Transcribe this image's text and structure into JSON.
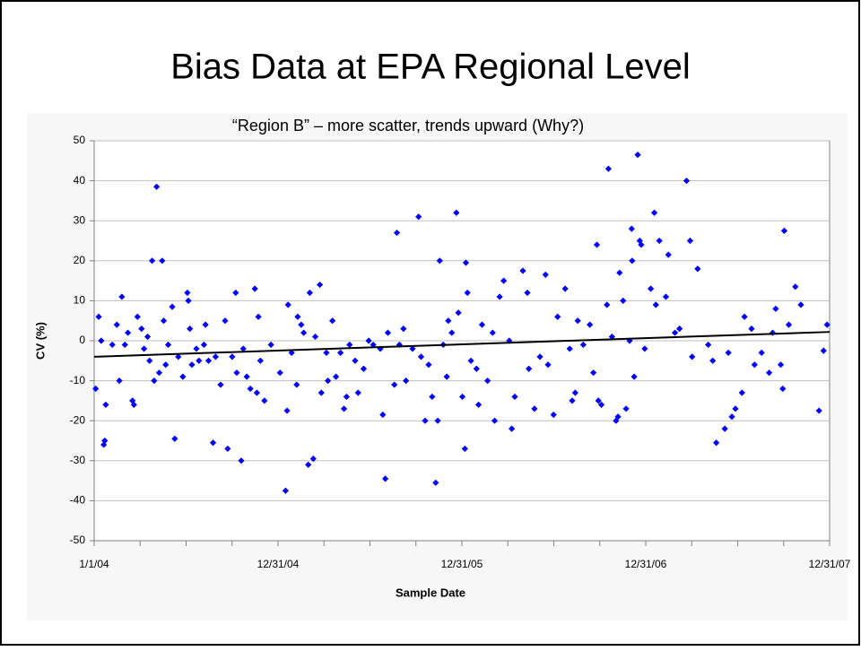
{
  "chart_data": {
    "type": "scatter",
    "title": "Bias Data at EPA Regional Level",
    "subtitle": "“Region B” – more scatter, trends upward (Why?)",
    "xlabel": "Sample Date",
    "ylabel": "CV (%)",
    "color": "#0000ff",
    "grid": true,
    "xlim": [
      "2004-01-01",
      "2007-12-31"
    ],
    "xticks": [
      {
        "value": "2004-01-01",
        "label": "1/1/04"
      },
      {
        "value": "2004-12-31",
        "label": "12/31/04"
      },
      {
        "value": "2005-12-31",
        "label": "12/31/05"
      },
      {
        "value": "2006-12-31",
        "label": "12/31/06"
      },
      {
        "value": "2007-12-31",
        "label": "12/31/07"
      }
    ],
    "ylim": [
      -50,
      50
    ],
    "yticks": [
      -50,
      -40,
      -30,
      -20,
      -10,
      0,
      10,
      20,
      30,
      40,
      50
    ],
    "x": [
      "2004-01-04",
      "2004-01-10",
      "2004-01-15",
      "2004-01-20",
      "2004-01-22",
      "2004-01-24",
      "2004-02-06",
      "2004-02-15",
      "2004-02-20",
      "2004-02-25",
      "2004-03-02",
      "2004-03-08",
      "2004-03-17",
      "2004-03-20",
      "2004-03-27",
      "2004-04-04",
      "2004-04-09",
      "2004-04-16",
      "2004-04-20",
      "2004-04-25",
      "2004-04-29",
      "2004-05-04",
      "2004-05-09",
      "2004-05-15",
      "2004-05-18",
      "2004-05-22",
      "2004-05-27",
      "2004-06-04",
      "2004-06-09",
      "2004-06-16",
      "2004-06-25",
      "2004-07-04",
      "2004-07-06",
      "2004-07-09",
      "2004-07-13",
      "2004-07-22",
      "2004-07-27",
      "2004-08-06",
      "2004-08-09",
      "2004-08-15",
      "2004-08-24",
      "2004-08-29",
      "2004-09-08",
      "2004-09-17",
      "2004-09-22",
      "2004-10-01",
      "2004-10-08",
      "2004-10-10",
      "2004-10-19",
      "2004-10-23",
      "2004-10-30",
      "2004-11-06",
      "2004-11-15",
      "2004-11-19",
      "2004-11-22",
      "2004-11-26",
      "2004-12-04",
      "2004-12-17",
      "2005-01-04",
      "2005-01-15",
      "2005-01-18",
      "2005-01-20",
      "2005-01-27",
      "2005-02-06",
      "2005-02-08",
      "2005-02-15",
      "2005-02-20",
      "2005-03-01",
      "2005-03-04",
      "2005-03-11",
      "2005-03-15",
      "2005-03-24",
      "2005-03-27",
      "2005-04-06",
      "2005-04-09",
      "2005-04-18",
      "2005-04-25",
      "2005-05-04",
      "2005-05-11",
      "2005-05-16",
      "2005-05-22",
      "2005-06-02",
      "2005-06-08",
      "2005-06-19",
      "2005-06-29",
      "2005-07-08",
      "2005-07-22",
      "2005-07-27",
      "2005-08-01",
      "2005-08-06",
      "2005-08-19",
      "2005-08-24",
      "2005-08-29",
      "2005-09-06",
      "2005-09-11",
      "2005-09-24",
      "2005-10-06",
      "2005-10-11",
      "2005-10-19",
      "2005-10-26",
      "2005-11-02",
      "2005-11-09",
      "2005-11-13",
      "2005-11-17",
      "2005-11-24",
      "2005-12-01",
      "2005-12-04",
      "2005-12-11",
      "2005-12-20",
      "2005-12-24",
      "2006-01-01",
      "2006-01-06",
      "2006-01-08",
      "2006-01-11",
      "2006-01-18",
      "2006-01-29",
      "2006-02-02",
      "2006-02-09",
      "2006-02-20",
      "2006-03-02",
      "2006-03-06",
      "2006-03-16",
      "2006-03-24",
      "2006-04-04",
      "2006-04-09",
      "2006-04-15",
      "2006-05-01",
      "2006-05-10",
      "2006-05-13",
      "2006-05-24",
      "2006-06-04",
      "2006-06-15",
      "2006-06-20",
      "2006-07-01",
      "2006-07-09",
      "2006-07-24",
      "2006-08-02",
      "2006-08-07",
      "2006-08-13",
      "2006-08-18",
      "2006-08-29",
      "2006-09-11",
      "2006-09-18",
      "2006-09-25",
      "2006-09-28",
      "2006-10-04",
      "2006-10-15",
      "2006-10-18",
      "2006-10-25",
      "2006-11-02",
      "2006-11-06",
      "2006-11-09",
      "2006-11-16",
      "2006-11-22",
      "2006-11-29",
      "2006-12-03",
      "2006-12-04",
      "2006-12-08",
      "2006-12-15",
      "2006-12-19",
      "2006-12-22",
      "2006-12-29",
      "2007-01-10",
      "2007-01-17",
      "2007-01-20",
      "2007-01-27",
      "2007-02-09",
      "2007-02-14",
      "2007-02-27",
      "2007-03-08",
      "2007-03-22",
      "2007-03-29",
      "2007-04-02",
      "2007-04-13",
      "2007-05-04",
      "2007-05-13",
      "2007-05-20",
      "2007-06-06",
      "2007-06-13",
      "2007-06-20",
      "2007-06-27",
      "2007-07-10",
      "2007-07-15",
      "2007-07-29",
      "2007-08-04",
      "2007-08-18",
      "2007-09-02",
      "2007-09-09",
      "2007-09-15",
      "2007-09-25",
      "2007-09-29",
      "2007-10-02",
      "2007-10-11",
      "2007-10-24",
      "2007-11-04",
      "2007-12-10",
      "2007-12-19",
      "2007-12-26"
    ],
    "values": [
      -12,
      6,
      0,
      -26,
      -25,
      -16,
      -1,
      4,
      -10,
      11,
      -1,
      2,
      -15,
      -16,
      6,
      3,
      -2,
      1,
      -5,
      20,
      -10,
      38.5,
      -8,
      20,
      5,
      -6,
      -1,
      8.5,
      -24.5,
      -4,
      -9,
      12,
      10,
      3,
      -6,
      -2,
      -5,
      -1,
      4,
      -5,
      -25.5,
      -4,
      -11,
      5,
      -27,
      -4,
      12,
      -8,
      -30,
      -2,
      -9,
      -12,
      13,
      -13,
      6,
      -5,
      -15,
      -1,
      -8,
      -37.5,
      -17.5,
      9,
      -3,
      -11,
      6,
      4,
      2,
      -31,
      12,
      -29.5,
      1,
      14,
      -13,
      -3,
      -10,
      5,
      -9,
      -3,
      -17,
      -14,
      -1,
      -5,
      -13,
      -7,
      0,
      -1,
      -2,
      -18.5,
      -34.5,
      2,
      -11,
      27,
      -1,
      3,
      -10,
      -2,
      31,
      -4,
      -20,
      -6,
      -14,
      -35.5,
      -20,
      20,
      -1,
      -9,
      5,
      2,
      32,
      7,
      -14,
      -27,
      19.5,
      12,
      -5,
      -7,
      -16,
      4,
      -10,
      2,
      -20,
      11,
      15,
      0,
      -22,
      -14,
      17.5,
      12,
      -7,
      -17,
      -4,
      16.5,
      -6,
      -18.5,
      6,
      13,
      -2,
      -15,
      -13,
      5,
      -1,
      4,
      -8,
      24,
      -15,
      -16,
      9,
      43,
      1,
      -20,
      -19,
      17,
      10,
      -17,
      0,
      28,
      20,
      -9,
      46.5,
      25,
      24,
      -2,
      13,
      32,
      9,
      25,
      11,
      21.5,
      2,
      3,
      40,
      25,
      -4,
      18,
      -1,
      -5,
      -25.5,
      -22,
      -3,
      -19,
      -17,
      -13,
      6,
      3,
      -6,
      -3,
      -8,
      2,
      8,
      -6,
      -12,
      27.5,
      4,
      13.5,
      9,
      -17.5,
      -2.5,
      4
    ],
    "trendline": {
      "color": "#000000",
      "x": [
        "2004-01-01",
        "2007-12-31"
      ],
      "values": [
        -4,
        2.2
      ]
    }
  }
}
